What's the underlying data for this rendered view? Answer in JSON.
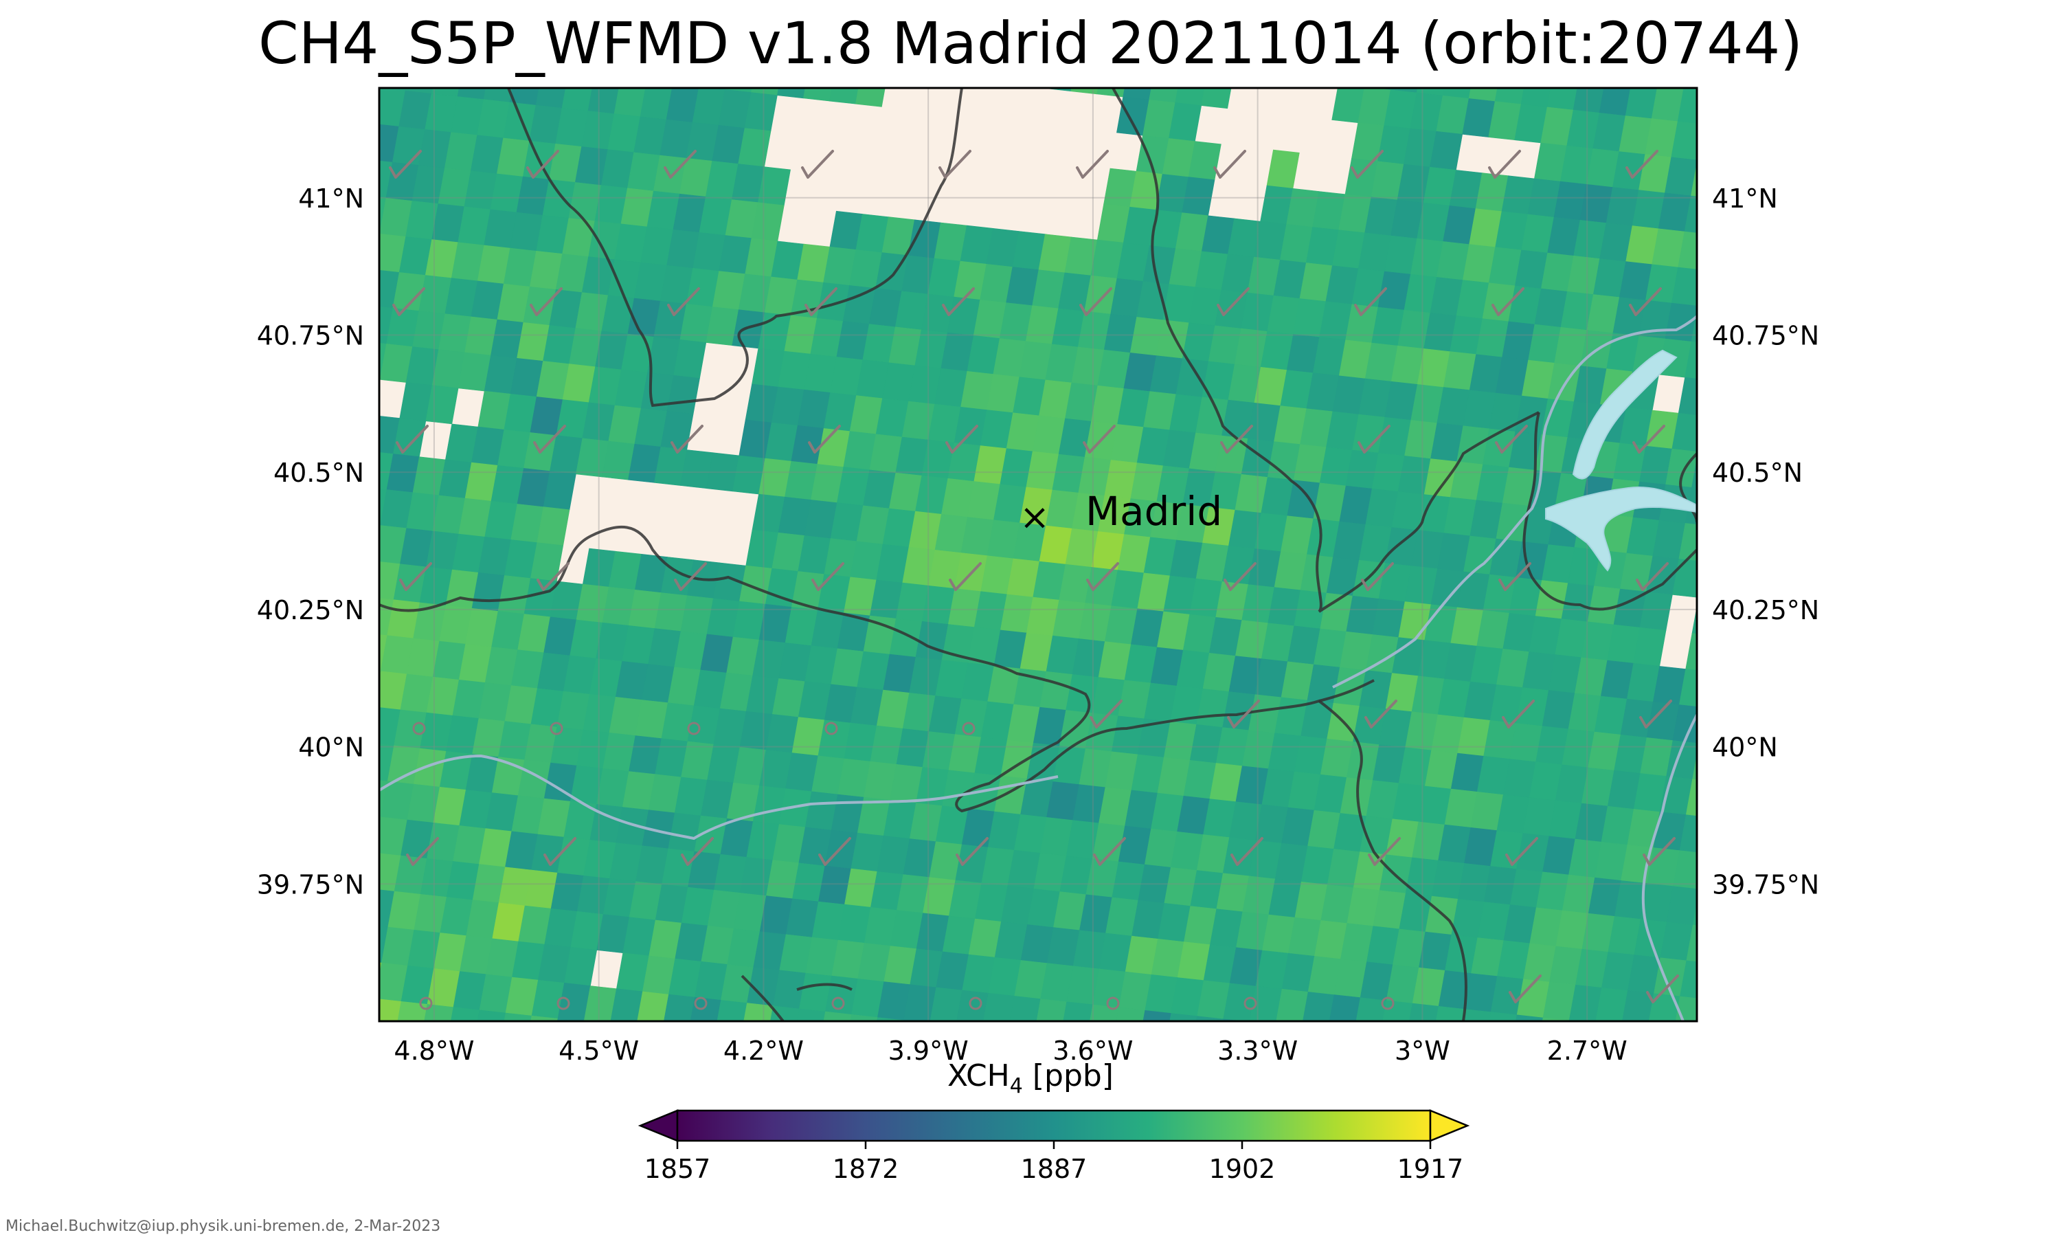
{
  "title": "CH4_S5P_WFMD v1.8 Madrid 20211014 (orbit:20744)",
  "xlabel_main": "XCH",
  "xlabel_sub": "4",
  "xlabel_unit": " [ppb]",
  "credit": "Michael.Buchwitz@iup.physik.uni-bremen.de, 2-Mar-2023",
  "city": {
    "name": "Madrid",
    "lon": -3.7,
    "lat": 40.42,
    "marker": "×"
  },
  "chart_data": {
    "type": "heatmap",
    "extent": {
      "lon": [
        -4.9,
        -2.5
      ],
      "lat": [
        39.5,
        41.2
      ]
    },
    "lon_ticks": [
      {
        "v": -4.8,
        "label": "4.8°W"
      },
      {
        "v": -4.5,
        "label": "4.5°W"
      },
      {
        "v": -4.2,
        "label": "4.2°W"
      },
      {
        "v": -3.9,
        "label": "3.9°W"
      },
      {
        "v": -3.6,
        "label": "3.6°W"
      },
      {
        "v": -3.3,
        "label": "3.3°W"
      },
      {
        "v": -3.0,
        "label": "3°W"
      },
      {
        "v": -2.7,
        "label": "2.7°W"
      }
    ],
    "lat_ticks": [
      {
        "v": 41.0,
        "label": "41°N"
      },
      {
        "v": 40.75,
        "label": "40.75°N"
      },
      {
        "v": 40.5,
        "label": "40.5°N"
      },
      {
        "v": 40.25,
        "label": "40.25°N"
      },
      {
        "v": 40.0,
        "label": "40°N"
      },
      {
        "v": 39.75,
        "label": "39.75°N"
      }
    ],
    "colorbar": {
      "min": 1857,
      "max": 1917,
      "colormap": "viridis",
      "extend": "both",
      "ticks": [
        1857,
        1872,
        1887,
        1902,
        1917
      ]
    },
    "grid": true,
    "colors": {
      "missing": "#faf0e6",
      "border": "#333333",
      "river": "#9fb7cc",
      "reservoir": "#b5e3ea"
    }
  }
}
